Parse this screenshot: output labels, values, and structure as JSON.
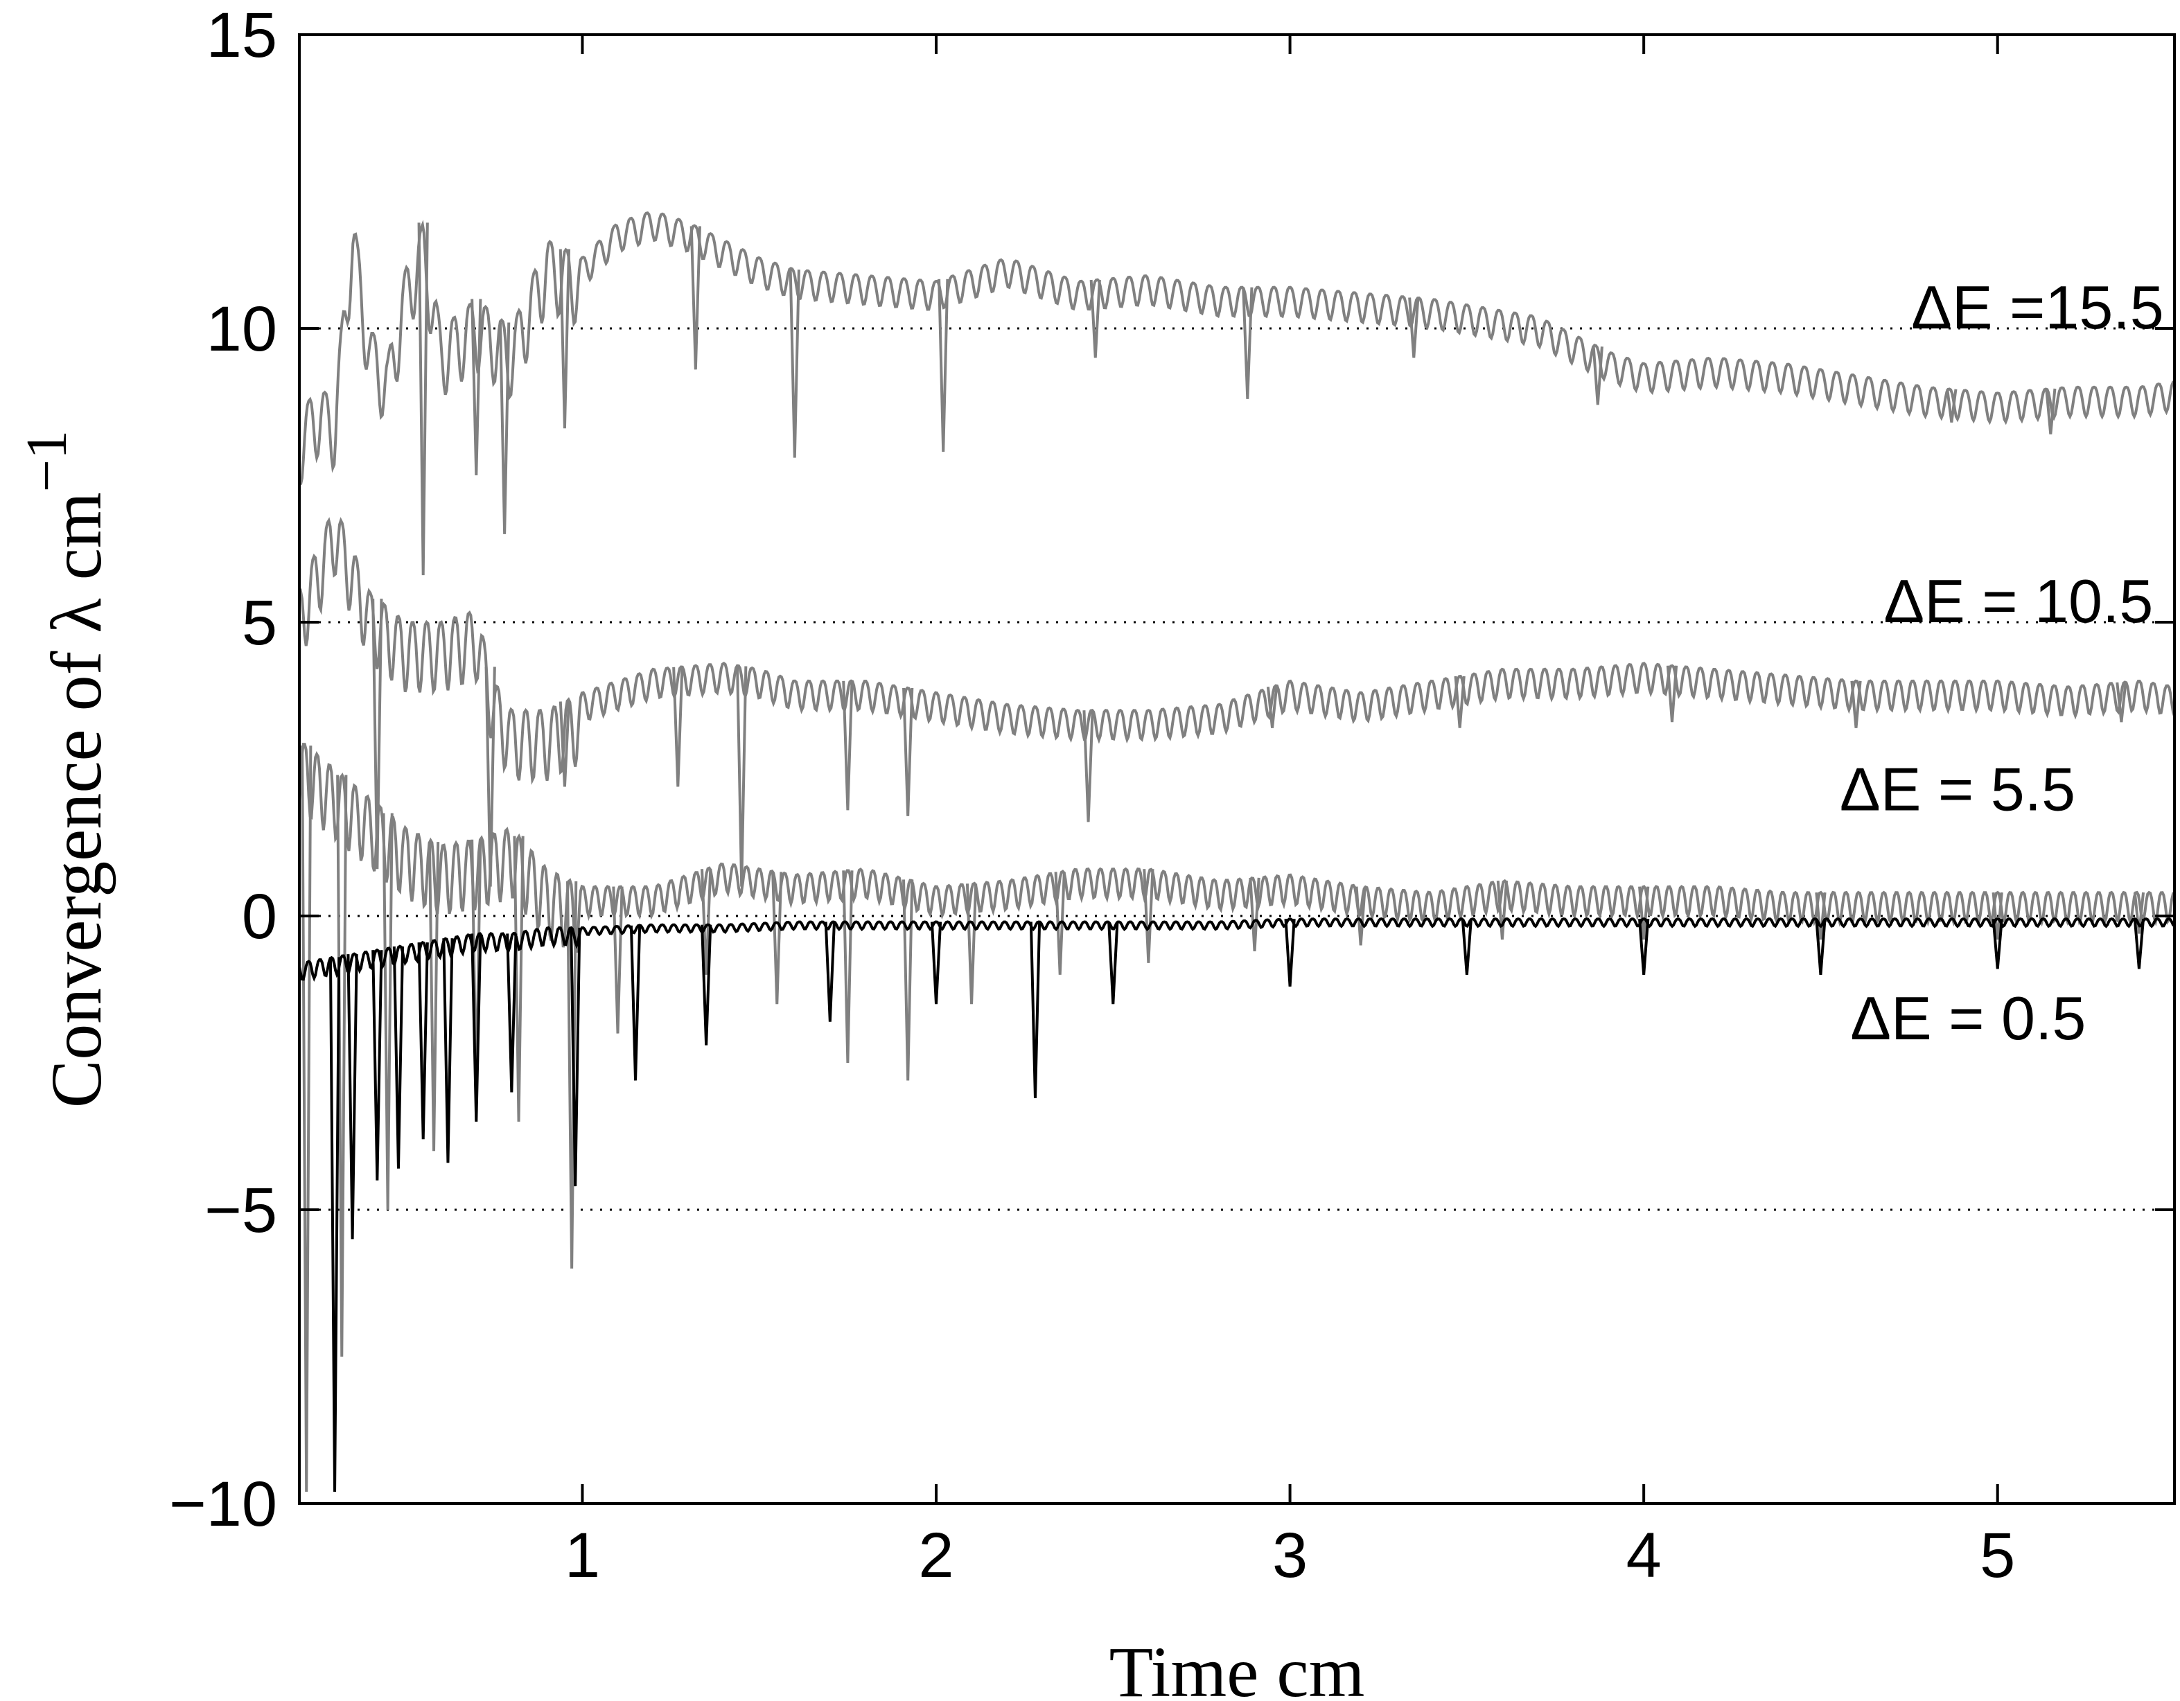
{
  "chart_data": {
    "type": "line",
    "xlabel": "Time cm",
    "ylabel_main": "Convergence of  λ cm",
    "ylabel_exp": "−1",
    "xlim": [
      0.2,
      5.5
    ],
    "ylim": [
      -10,
      15
    ],
    "x_ticks": [
      1,
      2,
      3,
      4,
      5
    ],
    "x_tick_labels": [
      "1",
      "2",
      "3",
      "4",
      "5"
    ],
    "y_ticks": [
      -10,
      -5,
      0,
      5,
      10,
      15
    ],
    "y_tick_labels": [
      "−10",
      "−5",
      "0",
      "5",
      "10",
      "15"
    ],
    "grid": "dotted horizontal at y = -5, 0, 5, 10",
    "colors": {
      "gray_series": "#808080",
      "black_series": "#000000",
      "axes": "#000000"
    },
    "series": [
      {
        "name": "ΔE =15.5",
        "color": "#808080",
        "x": [
          0.2,
          0.25,
          0.3,
          0.35,
          0.4,
          0.45,
          0.5,
          0.55,
          0.6,
          0.7,
          0.8,
          0.9,
          1.0,
          1.1,
          1.2,
          1.3,
          1.4,
          1.5,
          1.6,
          1.8,
          2.0,
          2.2,
          2.4,
          2.6,
          2.8,
          3.0,
          3.2,
          3.4,
          3.6,
          3.7,
          3.8,
          3.9,
          4.0,
          4.2,
          4.4,
          4.6,
          4.8,
          5.0,
          5.2,
          5.4,
          5.5
        ],
        "y": [
          8.5,
          9.0,
          8.8,
          12.0,
          10.0,
          9.5,
          11.0,
          11.8,
          10.0,
          10.5,
          10.0,
          11.5,
          11.2,
          11.8,
          12.0,
          11.8,
          11.5,
          11.2,
          11.0,
          10.9,
          10.8,
          11.2,
          10.8,
          10.9,
          10.7,
          10.7,
          10.6,
          10.5,
          10.3,
          10.2,
          9.9,
          9.6,
          9.4,
          9.5,
          9.4,
          9.2,
          9.0,
          8.9,
          9.0,
          9.0,
          9.1
        ],
        "dip_x": [
          0.55,
          0.7,
          0.78,
          0.95,
          1.32,
          1.6,
          2.02,
          2.45,
          2.88,
          3.35,
          3.87,
          4.87,
          5.15
        ],
        "dip_y": [
          5.8,
          7.5,
          6.5,
          8.3,
          9.3,
          7.8,
          7.9,
          9.5,
          8.8,
          9.5,
          8.7,
          8.4,
          8.2
        ]
      },
      {
        "name": "ΔE = 10.5",
        "color": "#808080",
        "x": [
          0.2,
          0.3,
          0.4,
          0.5,
          0.6,
          0.7,
          0.75,
          0.8,
          0.9,
          1.0,
          1.2,
          1.4,
          1.5,
          1.6,
          1.8,
          2.0,
          2.2,
          2.4,
          2.6,
          2.8,
          3.0,
          3.2,
          3.4,
          3.6,
          3.8,
          4.0,
          4.2,
          4.4,
          4.6,
          4.8,
          5.0,
          5.2,
          5.4,
          5.5
        ],
        "y": [
          5.5,
          7.0,
          5.5,
          5.0,
          5.0,
          5.2,
          4.0,
          3.5,
          3.5,
          3.8,
          4.2,
          4.3,
          4.2,
          4.0,
          4.0,
          3.8,
          3.6,
          3.5,
          3.5,
          3.6,
          4.0,
          3.8,
          4.0,
          4.2,
          4.2,
          4.3,
          4.2,
          4.1,
          4.0,
          4.0,
          4.0,
          3.9,
          4.0,
          3.9
        ],
        "dip_x": [
          0.42,
          0.74,
          0.95,
          1.27,
          1.45,
          1.75,
          1.92,
          2.43,
          2.95,
          3.48,
          4.08,
          4.6,
          5.35
        ],
        "dip_y": [
          0.8,
          0.5,
          2.2,
          2.2,
          0.5,
          1.8,
          1.7,
          1.6,
          3.2,
          3.2,
          3.3,
          3.2,
          3.3
        ]
      },
      {
        "name": "ΔE = 5.5",
        "color": "#808080",
        "x": [
          0.2,
          0.3,
          0.4,
          0.5,
          0.6,
          0.7,
          0.8,
          0.9,
          1.0,
          1.2,
          1.4,
          1.6,
          1.8,
          2.0,
          2.2,
          2.4,
          2.6,
          2.8,
          3.0,
          3.2,
          3.4,
          3.6,
          3.8,
          4.0,
          4.2,
          4.4,
          4.6,
          4.8,
          5.0,
          5.2,
          5.4,
          5.5
        ],
        "y": [
          3.0,
          2.5,
          2.0,
          1.5,
          1.2,
          1.3,
          1.5,
          0.8,
          0.5,
          0.5,
          0.9,
          0.7,
          0.8,
          0.5,
          0.6,
          0.8,
          0.8,
          0.6,
          0.7,
          0.5,
          0.4,
          0.6,
          0.5,
          0.5,
          0.5,
          0.4,
          0.4,
          0.4,
          0.4,
          0.4,
          0.4,
          0.4
        ],
        "dip_x": [
          0.22,
          0.32,
          0.45,
          0.58,
          0.7,
          0.82,
          0.97,
          1.1,
          1.35,
          1.55,
          1.75,
          1.92,
          2.1,
          2.35,
          2.6,
          2.9,
          3.2,
          3.6,
          4.0,
          4.5,
          5.0,
          5.4
        ],
        "dip_y": [
          -9.8,
          -7.5,
          -5.0,
          -4.0,
          -3.0,
          -3.5,
          -6.0,
          -2.0,
          -1.0,
          -1.5,
          -2.5,
          -2.8,
          -1.5,
          -1.0,
          -0.8,
          -0.6,
          -0.5,
          -0.4,
          -0.4,
          -0.4,
          -0.4,
          -0.3
        ]
      },
      {
        "name": "ΔE = 0.5",
        "color": "#000000",
        "x": [
          0.2,
          0.3,
          0.4,
          0.5,
          0.6,
          0.7,
          0.8,
          0.9,
          1.0,
          1.2,
          1.4,
          1.6,
          1.8,
          2.0,
          2.2,
          2.4,
          2.6,
          2.8,
          3.0,
          3.2,
          3.4,
          3.6,
          3.8,
          4.0,
          4.2,
          4.4,
          4.6,
          4.8,
          5.0,
          5.2,
          5.4,
          5.5
        ],
        "y": [
          -0.8,
          -0.7,
          -0.6,
          -0.5,
          -0.4,
          -0.3,
          -0.3,
          -0.2,
          -0.2,
          -0.15,
          -0.15,
          -0.1,
          -0.1,
          -0.1,
          -0.1,
          -0.1,
          -0.1,
          -0.1,
          -0.05,
          -0.05,
          -0.05,
          -0.05,
          -0.05,
          -0.05,
          -0.05,
          -0.05,
          -0.05,
          -0.05,
          -0.05,
          -0.05,
          -0.05,
          -0.05
        ],
        "dip_x": [
          0.3,
          0.35,
          0.42,
          0.48,
          0.55,
          0.62,
          0.7,
          0.8,
          0.98,
          1.15,
          1.35,
          1.7,
          2.0,
          2.28,
          2.5,
          3.0,
          3.5,
          4.0,
          4.5,
          5.0,
          5.4
        ],
        "dip_y": [
          -9.8,
          -5.5,
          -4.5,
          -4.3,
          -3.8,
          -4.2,
          -3.5,
          -3.0,
          -4.6,
          -2.8,
          -2.2,
          -1.8,
          -1.5,
          -3.1,
          -1.5,
          -1.2,
          -1.0,
          -1.0,
          -1.0,
          -0.9,
          -0.9
        ]
      }
    ]
  }
}
